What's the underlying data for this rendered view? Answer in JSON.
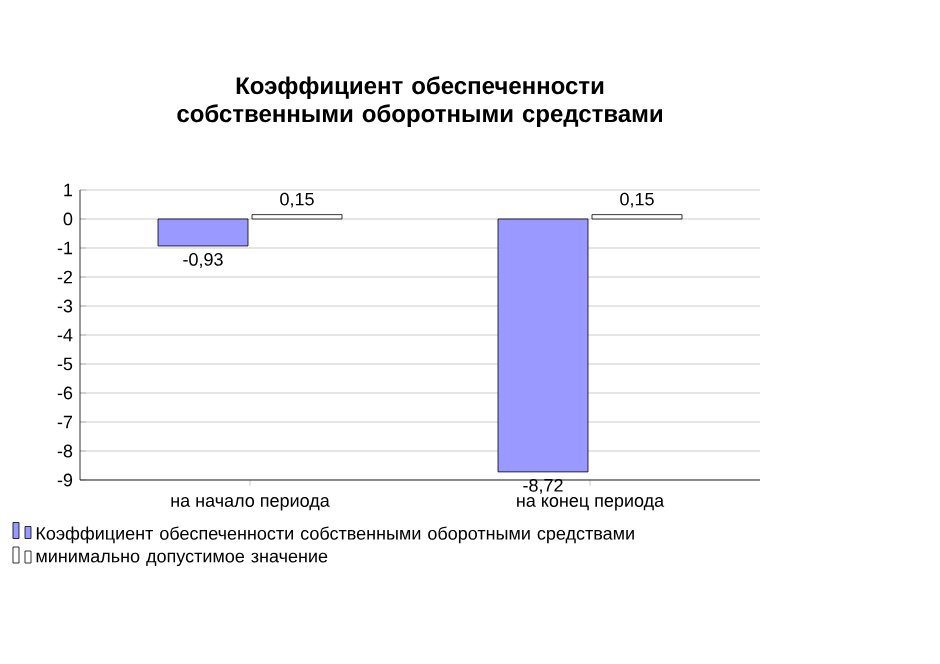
{
  "chart_data": {
    "type": "bar",
    "title": "Коэффициент обеспеченности собственными оборотными средствами",
    "categories": [
      "на начало периода",
      "на конец периода"
    ],
    "series": [
      {
        "name": "Коэффициент обеспеченности собственными оборотными средствами",
        "color": "#9999ff",
        "values": [
          -0.93,
          -8.72
        ],
        "value_labels": [
          "-0,93",
          "-8,72"
        ]
      },
      {
        "name": "минимально допустимое значение",
        "color": "#ffffff",
        "values": [
          0.15,
          0.15
        ],
        "value_labels": [
          "0,15",
          "0,15"
        ]
      }
    ],
    "ylim": [
      -9,
      1
    ],
    "yticks": [
      -9,
      -8,
      -7,
      -6,
      -5,
      -4,
      -3,
      -2,
      -1,
      0,
      1
    ],
    "grid": "y",
    "legend": "bottom"
  }
}
